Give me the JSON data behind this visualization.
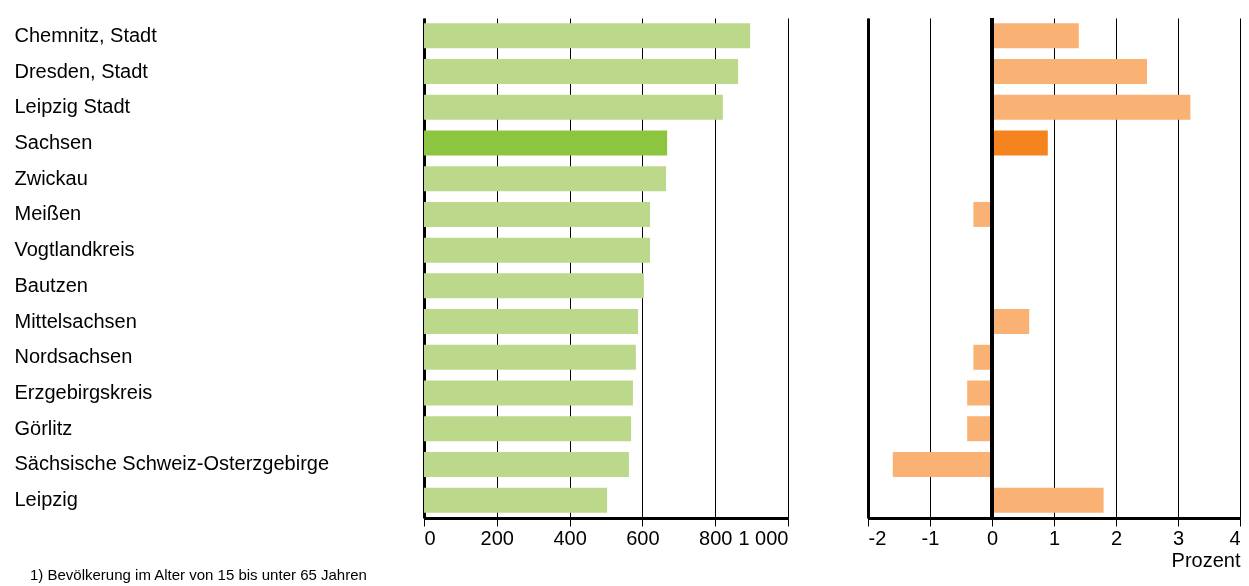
{
  "chart_data": [
    {
      "type": "bar",
      "orientation": "horizontal",
      "categories": [
        "Chemnitz, Stadt",
        "Dresden, Stadt",
        "Leipzig Stadt",
        "Sachsen",
        "Zwickau",
        "Meißen",
        "Vogtlandkreis",
        "Bautzen",
        "Mittelsachsen",
        "Nordsachsen",
        "Erzgebirgskreis",
        "Görlitz",
        "Sächsische Schweiz-Osterzgebirge",
        "Leipzig"
      ],
      "values": [
        896,
        863,
        821,
        668,
        665,
        621,
        621,
        604,
        588,
        582,
        574,
        569,
        563,
        503
      ],
      "colors": [
        "#bcd98b",
        "#bcd98b",
        "#bcd98b",
        "#8cc540",
        "#bcd98b",
        "#bcd98b",
        "#bcd98b",
        "#bcd98b",
        "#bcd98b",
        "#bcd98b",
        "#bcd98b",
        "#bcd98b",
        "#bcd98b",
        "#bcd98b"
      ],
      "xlim": [
        0,
        1000
      ],
      "xticks": [
        0,
        200,
        400,
        600,
        800,
        {
          "value": 1000,
          "label": "1 000"
        }
      ],
      "grid": "x",
      "annotations": [
        "1) Bevölkerung im Alter von 15 bis unter 65 Jahren"
      ]
    },
    {
      "type": "bar",
      "orientation": "horizontal",
      "categories": [
        null,
        null,
        null,
        null,
        null,
        null,
        null,
        null,
        null,
        null,
        null,
        null,
        null,
        null
      ],
      "values": [
        1.4,
        2.5,
        3.2,
        0.9,
        0,
        -0.3,
        0,
        0,
        0.6,
        -0.3,
        -0.4,
        -0.4,
        -1.6,
        1.8
      ],
      "colors": [
        "#f9b174",
        "#f9b174",
        "#f9b174",
        "#f5841f",
        "#f9b174",
        "#f9b174",
        "#f9b174",
        "#f9b174",
        "#f9b174",
        "#f9b174",
        "#f9b174",
        "#f9b174",
        "#f9b174",
        "#f9b174"
      ],
      "xlim": [
        -2,
        4
      ],
      "xticks": [
        -2,
        -1,
        0,
        1,
        2,
        3,
        4
      ],
      "xlabel": "Prozent",
      "grid": "x",
      "tick_labels": "x",
      "ref_lines": [
        {
          "axis": "x",
          "value": 0
        }
      ]
    }
  ]
}
